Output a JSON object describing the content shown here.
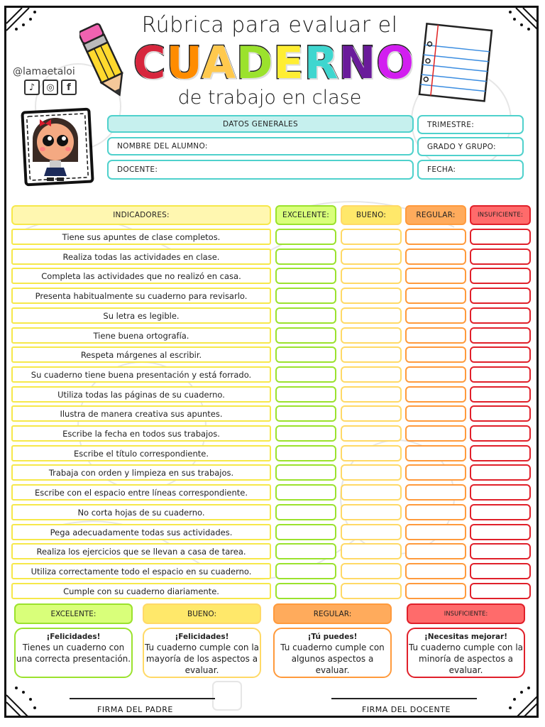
{
  "header": {
    "title_top": "Rúbrica para evaluar el",
    "title_main_letters": [
      {
        "char": "C",
        "color": "#d7263d"
      },
      {
        "char": "U",
        "color": "#ff8c00"
      },
      {
        "char": "A",
        "color": "#ffc94d"
      },
      {
        "char": "D",
        "color": "#9be22d"
      },
      {
        "char": "E",
        "color": "#ffee33"
      },
      {
        "char": "R",
        "color": "#3fd6cf"
      },
      {
        "char": "N",
        "color": "#6a1b9a"
      },
      {
        "char": "O",
        "color": "#d21ef0"
      }
    ],
    "title_sub": "de trabajo en clase",
    "handle": "@lamaetaloi",
    "social_icons": [
      "tiktok-icon",
      "instagram-icon",
      "facebook-icon"
    ]
  },
  "datos": {
    "heading": "DATOS GENERALES",
    "nombre_label": "NOMBRE DEL ALUMNO:",
    "docente_label": "DOCENTE:",
    "trimestre_label": "TRIMESTRE:",
    "grado_label": "GRADO Y GRUPO:",
    "fecha_label": "FECHA:",
    "accent": "#4fd1cc"
  },
  "rubric": {
    "indicadores_label": "INDICADORES:",
    "columns": [
      {
        "label": "EXCELENTE:",
        "fill": "#d9ff7a",
        "border": "#9be22d"
      },
      {
        "label": "BUENO:",
        "fill": "#ffe86a",
        "border": "#ffd966"
      },
      {
        "label": "REGULAR:",
        "fill": "#ffab5c",
        "border": "#ff9a3c"
      },
      {
        "label": "INSUFICIENTE:",
        "fill": "#ff6b6b",
        "border": "#e0202a"
      }
    ],
    "indicators": [
      "Tiene sus apuntes de clase completos.",
      "Realiza todas las actividades en clase.",
      "Completa las actividades que no realizó en casa.",
      "Presenta habitualmente su cuaderno para revisarlo.",
      "Su letra es legible.",
      "Tiene buena ortografía.",
      "Respeta márgenes al escribir.",
      "Su cuaderno tiene buena presentación y está forrado.",
      "Utiliza todas las páginas de su cuaderno.",
      "Ilustra de manera creativa sus apuntes.",
      "Escribe la fecha en todos sus trabajos.",
      "Escribe el título correspondiente.",
      "Trabaja con orden y limpieza en sus trabajos.",
      "Escribe con el espacio entre líneas correspondiente.",
      "No corta hojas de su cuaderno.",
      "Pega adecuadamente todas sus actividades.",
      "Realiza los ejercicios que se llevan a casa de tarea.",
      "Utiliza correctamente todo el espacio en su cuaderno.",
      "Cumple con su cuaderno diariamente."
    ]
  },
  "legend": [
    {
      "label": "EXCELENTE:",
      "lead": "¡Felicidades!",
      "text": "Tienes un cuaderno con una correcta presentación."
    },
    {
      "label": "BUENO:",
      "lead": "¡Felicidades!",
      "text": "Tu cuaderno cumple con la mayoría de los aspectos a evaluar."
    },
    {
      "label": "REGULAR:",
      "lead": "¡Tú puedes!",
      "text": "Tu cuaderno cumple con algunos aspectos a evaluar."
    },
    {
      "label": "INSUFICIENTE:",
      "lead": "¡Necesitas mejorar!",
      "text": "Tu cuaderno cumple con la minoría de aspectos a evaluar."
    }
  ],
  "signatures": {
    "padre": "FIRMA DEL PADRE",
    "docente": "FIRMA DEL DOCENTE"
  }
}
